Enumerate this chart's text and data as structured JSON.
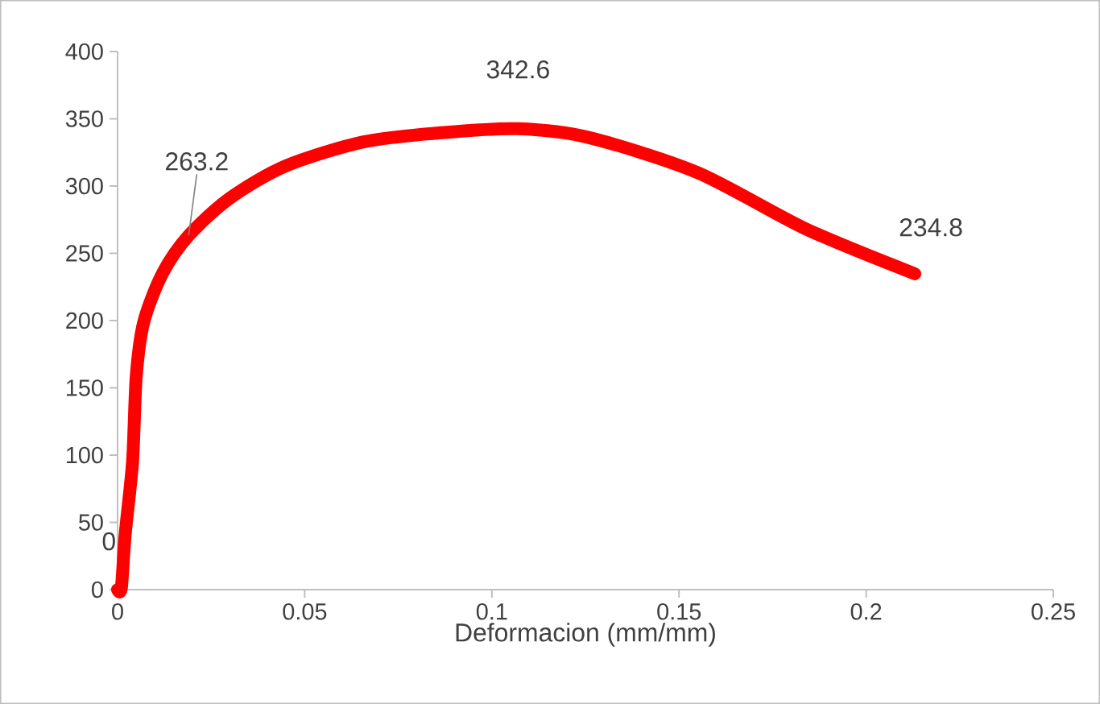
{
  "chart_data": {
    "type": "line",
    "xlabel": "Deformacion (mm/mm)",
    "x": [
      0,
      0.001,
      0.002,
      0.004,
      0.005,
      0.007,
      0.012,
      0.019,
      0.03,
      0.045,
      0.066,
      0.088,
      0.107,
      0.126,
      0.155,
      0.184,
      0.213
    ],
    "series": [
      {
        "color": "#ff0000",
        "values": [
          0,
          1,
          40,
          95,
          159,
          199,
          235,
          263.2,
          291,
          315,
          333,
          340,
          342.6,
          336,
          310,
          268,
          234.8
        ]
      }
    ],
    "xlim": [
      0,
      0.25
    ],
    "xticks": [
      0,
      0.05,
      0.1,
      0.15,
      0.2,
      0.25
    ],
    "ylim": [
      0,
      400
    ],
    "yticks": [
      0,
      50,
      100,
      150,
      200,
      250,
      300,
      350,
      400
    ],
    "grid": false,
    "marker": "none",
    "line_style": "solid",
    "annotations": [
      {
        "text": "0",
        "x": 0,
        "y": 0
      },
      {
        "text": "263.2",
        "x": 0.019,
        "y": 263.2
      },
      {
        "text": "342.6",
        "x": 0.107,
        "y": 342.6
      },
      {
        "text": "234.8",
        "x": 0.213,
        "y": 234.8
      }
    ]
  }
}
